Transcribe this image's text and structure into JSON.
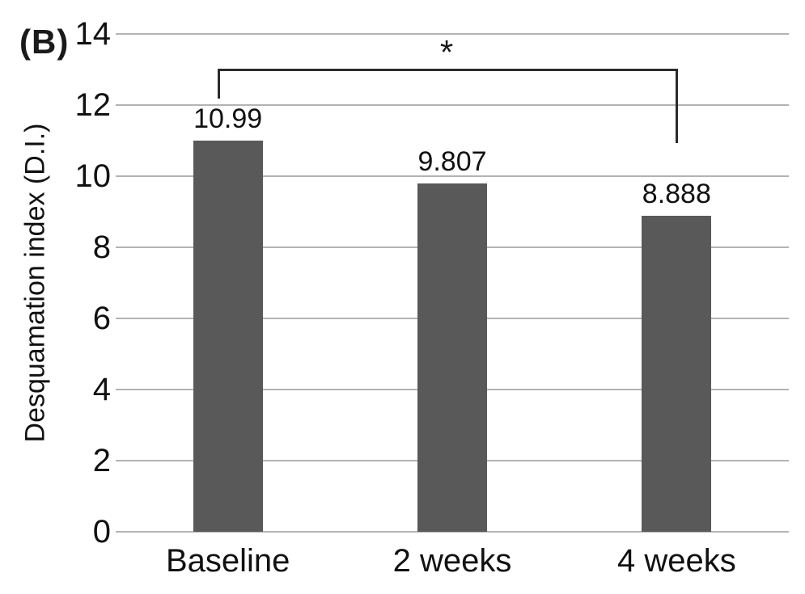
{
  "panel_label": "(B)",
  "chart_data": {
    "type": "bar",
    "title": "",
    "xlabel": "",
    "ylabel": "Desquamation index (D.I.)",
    "categories": [
      "Baseline",
      "2 weeks",
      "4 weeks"
    ],
    "values": [
      10.99,
      9.807,
      8.888
    ],
    "value_labels": [
      "10.99",
      "9.807",
      "8.888"
    ],
    "ylim": [
      0,
      14
    ],
    "ytick_step": 2,
    "ytick_labels": [
      "0",
      "2",
      "4",
      "6",
      "8",
      "10",
      "12",
      "14"
    ],
    "grid": true,
    "legend": "none",
    "bar_color": "#595959",
    "gridline_color": "#b3b3b3",
    "text_color": "#111111",
    "significance": {
      "label": "*",
      "from_category": "Baseline",
      "to_category": "4 weeks",
      "line_color": "#2b2b2b"
    }
  }
}
